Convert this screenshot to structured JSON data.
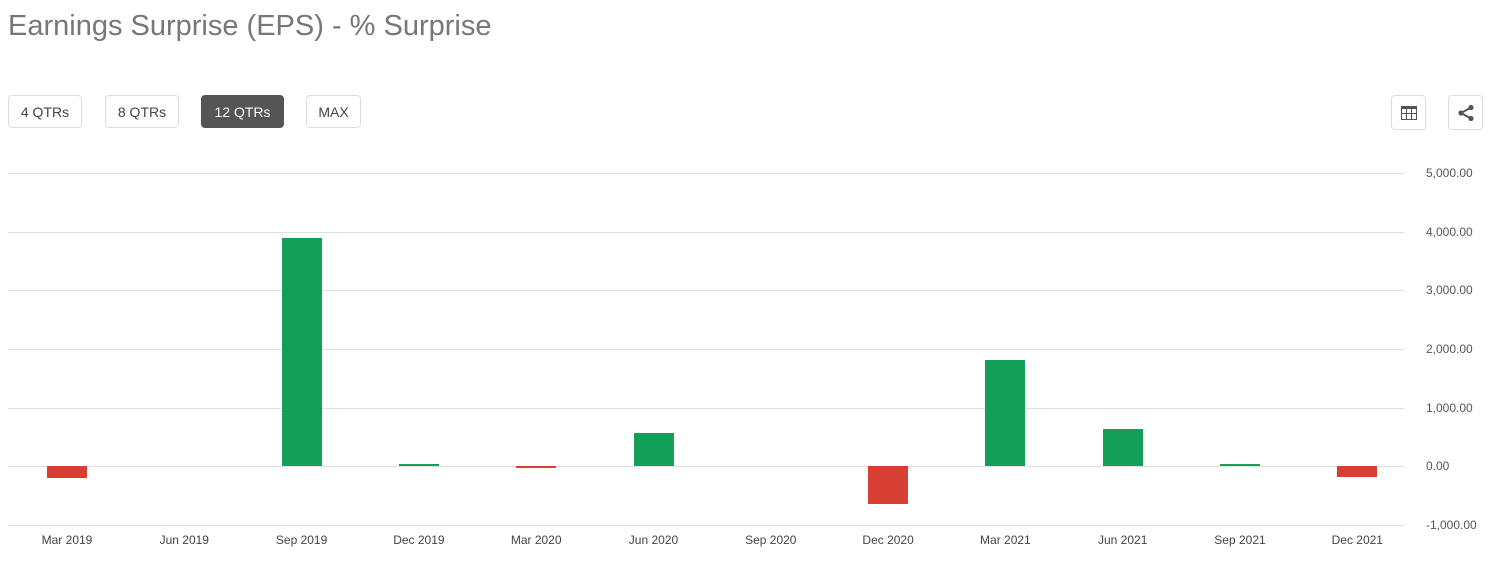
{
  "header": {
    "title": "Earnings Surprise (EPS) - % Surprise"
  },
  "range_buttons": [
    {
      "label": "4 QTRs",
      "active": false
    },
    {
      "label": "8 QTRs",
      "active": false
    },
    {
      "label": "12 QTRs",
      "active": true
    },
    {
      "label": "MAX",
      "active": false
    }
  ],
  "toolbar": {
    "table_icon": "table-icon",
    "share_icon": "share-icon"
  },
  "colors": {
    "positive": "#139f57",
    "negative": "#d63f32",
    "grid": "#e0e0e0",
    "active_button": "#555555"
  },
  "chart_data": {
    "type": "bar",
    "title": "Earnings Surprise (EPS) - % Surprise",
    "xlabel": "",
    "ylabel": "% Surprise",
    "categories": [
      "Mar 2019",
      "Jun 2019",
      "Sep 2019",
      "Dec 2019",
      "Mar 2020",
      "Jun 2020",
      "Sep 2020",
      "Dec 2020",
      "Mar 2021",
      "Jun 2021",
      "Sep 2021",
      "Dec 2021"
    ],
    "values": [
      -195,
      0,
      3890,
      40,
      -20,
      565,
      0,
      -650,
      1810,
      630,
      40,
      -190
    ],
    "ylim": [
      -1000,
      5000
    ],
    "yticks": [
      "5,000.00",
      "4,000.00",
      "3,000.00",
      "2,000.00",
      "1,000.00",
      "0.00",
      "-1,000.00"
    ],
    "grid": true,
    "legend": "none",
    "y_axis_position": "right"
  }
}
